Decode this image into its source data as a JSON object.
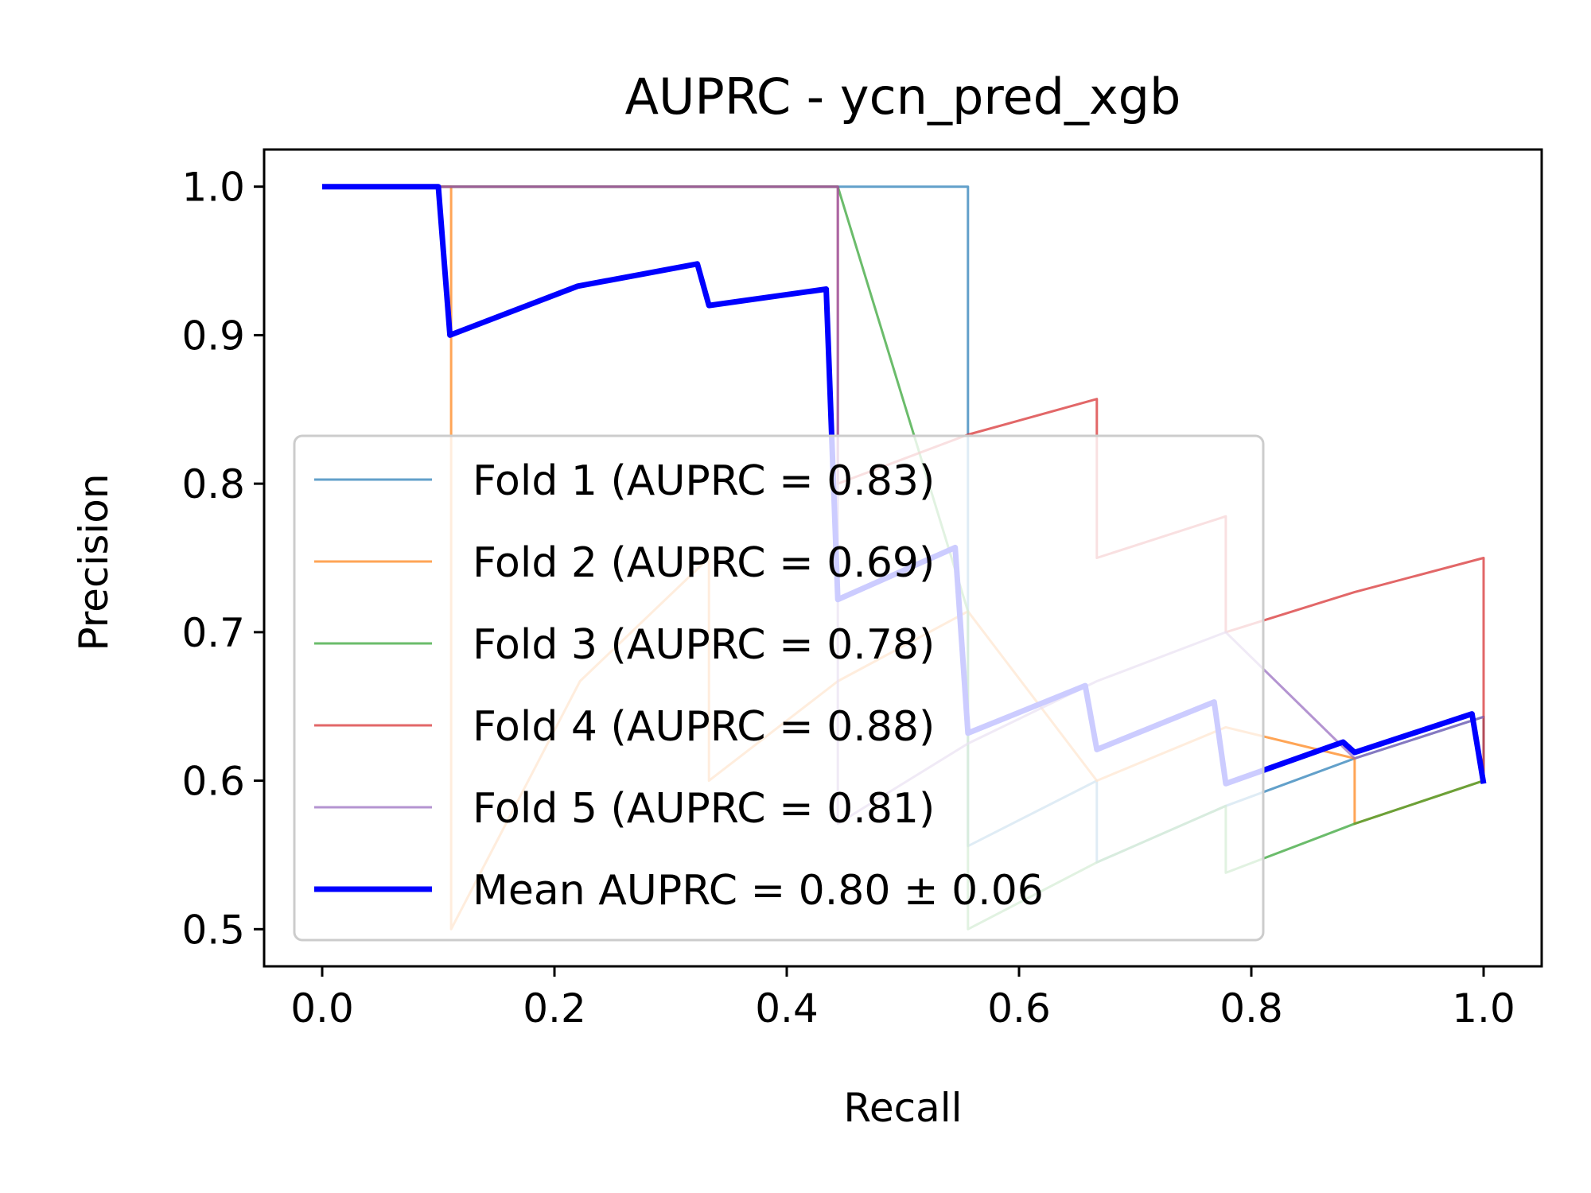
{
  "chart_data": {
    "type": "line",
    "title": "AUPRC - ycn_pred_xgb",
    "xlabel": "Recall",
    "ylabel": "Precision",
    "xlim": [
      -0.05,
      1.05
    ],
    "ylim": [
      0.475,
      1.025
    ],
    "xticks": [
      "0.0",
      "0.2",
      "0.4",
      "0.6",
      "0.8",
      "1.0"
    ],
    "yticks": [
      "0.5",
      "0.6",
      "0.7",
      "0.8",
      "0.9",
      "1.0"
    ],
    "grid": false,
    "legend_placement": "lower-left",
    "series": [
      {
        "name": "Fold 1 (AUPRC = 0.83)",
        "color": "#1f77b4",
        "opacity": 0.7,
        "width": 3,
        "x": [
          0.0,
          0.111,
          0.222,
          0.333,
          0.444,
          0.556,
          0.556,
          0.667,
          0.667,
          0.778,
          0.889,
          1.0,
          1.0
        ],
        "y": [
          1.0,
          1.0,
          1.0,
          1.0,
          1.0,
          1.0,
          0.556,
          0.6,
          0.545,
          0.583,
          0.615,
          0.643,
          0.6
        ]
      },
      {
        "name": "Fold 2 (AUPRC = 0.69)",
        "color": "#ff7f0e",
        "opacity": 0.7,
        "width": 3,
        "x": [
          0.0,
          0.111,
          0.111,
          0.222,
          0.333,
          0.333,
          0.444,
          0.556,
          0.667,
          0.778,
          0.889,
          0.889,
          1.0
        ],
        "y": [
          1.0,
          1.0,
          0.5,
          0.667,
          0.75,
          0.6,
          0.667,
          0.714,
          0.6,
          0.636,
          0.615,
          0.571,
          0.6
        ]
      },
      {
        "name": "Fold 3 (AUPRC = 0.78)",
        "color": "#2ca02c",
        "opacity": 0.7,
        "width": 3,
        "x": [
          0.0,
          0.111,
          0.222,
          0.333,
          0.444,
          0.556,
          0.556,
          0.667,
          0.778,
          0.778,
          0.889,
          1.0
        ],
        "y": [
          1.0,
          1.0,
          1.0,
          1.0,
          1.0,
          0.714,
          0.5,
          0.545,
          0.583,
          0.538,
          0.571,
          0.6
        ]
      },
      {
        "name": "Fold 4 (AUPRC = 0.88)",
        "color": "#d62728",
        "opacity": 0.7,
        "width": 3,
        "x": [
          0.0,
          0.111,
          0.222,
          0.333,
          0.444,
          0.444,
          0.556,
          0.667,
          0.667,
          0.778,
          0.778,
          0.889,
          1.0,
          1.0
        ],
        "y": [
          1.0,
          1.0,
          1.0,
          1.0,
          1.0,
          0.8,
          0.833,
          0.857,
          0.75,
          0.778,
          0.7,
          0.727,
          0.75,
          0.6
        ]
      },
      {
        "name": "Fold 5 (AUPRC = 0.81)",
        "color": "#9467bd",
        "opacity": 0.7,
        "width": 3,
        "x": [
          0.0,
          0.111,
          0.222,
          0.333,
          0.444,
          0.444,
          0.556,
          0.556,
          0.667,
          0.778,
          0.889,
          1.0
        ],
        "y": [
          1.0,
          1.0,
          1.0,
          1.0,
          1.0,
          0.571,
          0.625,
          0.625,
          0.667,
          0.7,
          0.615,
          0.643
        ]
      },
      {
        "name": "Mean AUPRC = 0.80 ± 0.06",
        "color": "#0000ff",
        "opacity": 1.0,
        "width": 7,
        "x": [
          0.0,
          0.1,
          0.11,
          0.22,
          0.323,
          0.333,
          0.434,
          0.444,
          0.545,
          0.556,
          0.657,
          0.667,
          0.768,
          0.778,
          0.879,
          0.889,
          0.99,
          1.0
        ],
        "y": [
          1.0,
          1.0,
          0.9,
          0.933,
          0.948,
          0.92,
          0.931,
          0.722,
          0.757,
          0.632,
          0.664,
          0.621,
          0.653,
          0.598,
          0.626,
          0.619,
          0.645,
          0.598
        ]
      }
    ]
  }
}
